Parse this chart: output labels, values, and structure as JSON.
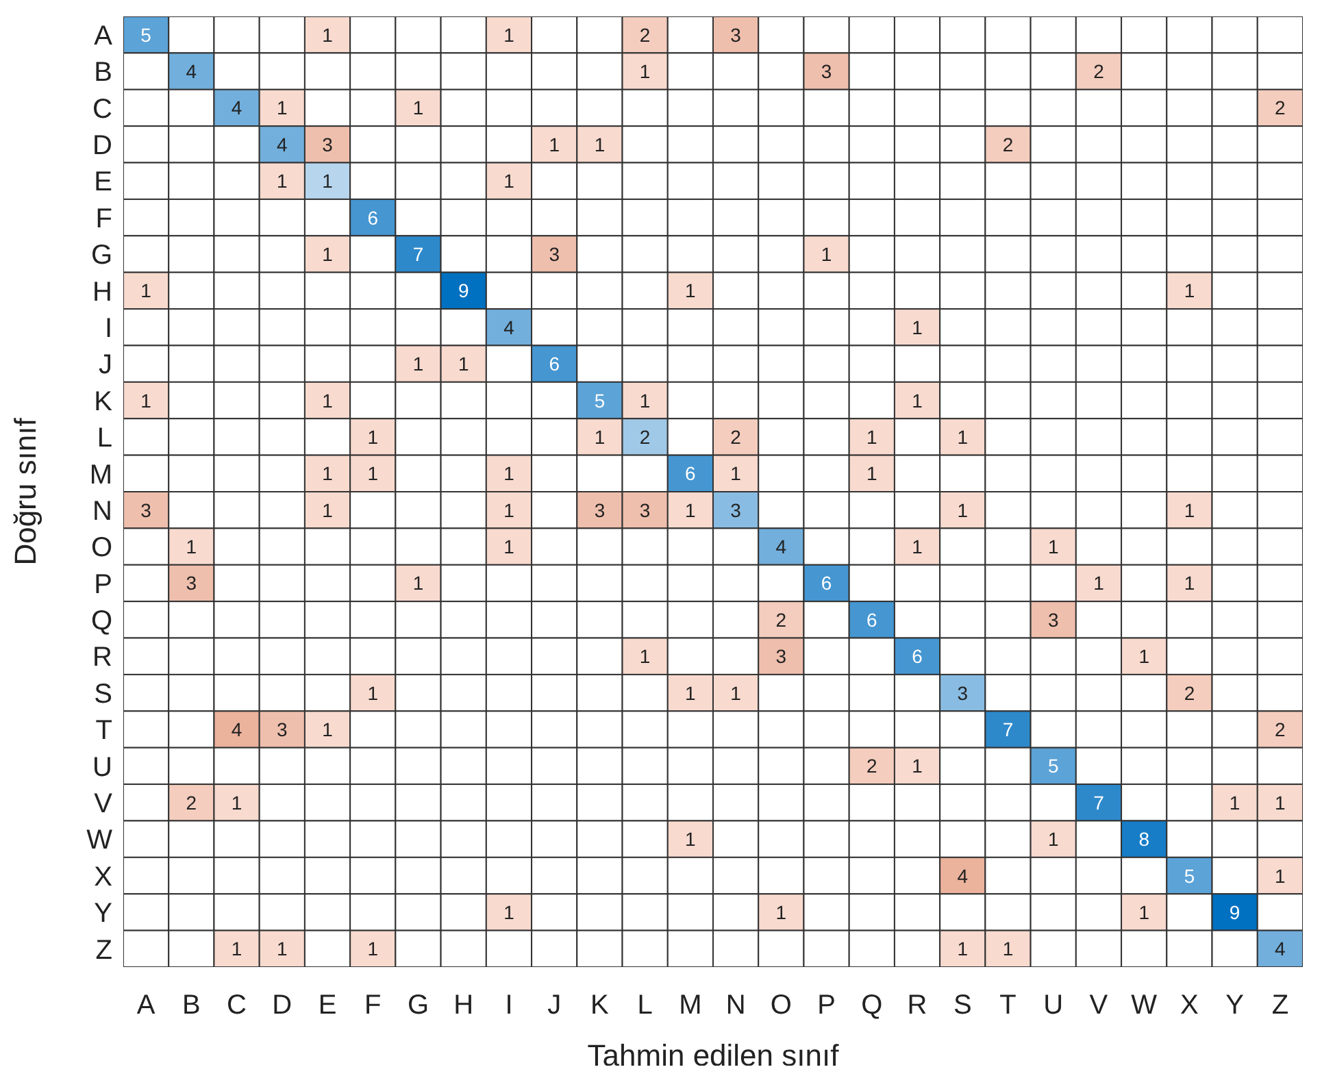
{
  "chart_data": {
    "type": "heatmap",
    "data_labels": true,
    "xlabel": "Tahmin edilen sınıf",
    "ylabel": "Doğru sınıf",
    "categories": [
      "A",
      "B",
      "C",
      "D",
      "E",
      "F",
      "G",
      "H",
      "I",
      "J",
      "K",
      "L",
      "M",
      "N",
      "O",
      "P",
      "Q",
      "R",
      "S",
      "T",
      "U",
      "V",
      "W",
      "X",
      "Y",
      "Z"
    ],
    "y_categories": [
      "A",
      "B",
      "C",
      "D",
      "E",
      "F",
      "G",
      "H",
      "I",
      "J",
      "K",
      "L",
      "M",
      "N",
      "O",
      "P",
      "Q",
      "R",
      "S",
      "T",
      "U",
      "V",
      "W",
      "X",
      "Y",
      "Z"
    ],
    "cells": [
      [
        5,
        null,
        null,
        null,
        1,
        null,
        null,
        null,
        1,
        null,
        null,
        2,
        null,
        3,
        null,
        null,
        null,
        null,
        null,
        null,
        null,
        null,
        null,
        null,
        null,
        null
      ],
      [
        null,
        4,
        null,
        null,
        null,
        null,
        null,
        null,
        null,
        null,
        null,
        1,
        null,
        null,
        null,
        3,
        null,
        null,
        null,
        null,
        null,
        2,
        null,
        null,
        null,
        null
      ],
      [
        null,
        null,
        4,
        1,
        null,
        null,
        1,
        null,
        null,
        null,
        null,
        null,
        null,
        null,
        null,
        null,
        null,
        null,
        null,
        null,
        null,
        null,
        null,
        null,
        null,
        2
      ],
      [
        null,
        null,
        null,
        4,
        3,
        null,
        null,
        null,
        null,
        1,
        1,
        null,
        null,
        null,
        null,
        null,
        null,
        null,
        null,
        2,
        null,
        null,
        null,
        null,
        null,
        null
      ],
      [
        null,
        null,
        null,
        1,
        1,
        null,
        null,
        null,
        1,
        null,
        null,
        null,
        null,
        null,
        null,
        null,
        null,
        null,
        null,
        null,
        null,
        null,
        null,
        null,
        null,
        null
      ],
      [
        null,
        null,
        null,
        null,
        null,
        6,
        null,
        null,
        null,
        null,
        null,
        null,
        null,
        null,
        null,
        null,
        null,
        null,
        null,
        null,
        null,
        null,
        null,
        null,
        null,
        null
      ],
      [
        null,
        null,
        null,
        null,
        1,
        null,
        7,
        null,
        null,
        3,
        null,
        null,
        null,
        null,
        null,
        1,
        null,
        null,
        null,
        null,
        null,
        null,
        null,
        null,
        null,
        null
      ],
      [
        1,
        null,
        null,
        null,
        null,
        null,
        null,
        9,
        null,
        null,
        null,
        null,
        1,
        null,
        null,
        null,
        null,
        null,
        null,
        null,
        null,
        null,
        null,
        1,
        null,
        null
      ],
      [
        null,
        null,
        null,
        null,
        null,
        null,
        null,
        null,
        4,
        null,
        null,
        null,
        null,
        null,
        null,
        null,
        null,
        1,
        null,
        null,
        null,
        null,
        null,
        null,
        null,
        null
      ],
      [
        null,
        null,
        null,
        null,
        null,
        null,
        1,
        1,
        null,
        6,
        null,
        null,
        null,
        null,
        null,
        null,
        null,
        null,
        null,
        null,
        null,
        null,
        null,
        null,
        null,
        null
      ],
      [
        1,
        null,
        null,
        null,
        1,
        null,
        null,
        null,
        null,
        null,
        5,
        1,
        null,
        null,
        null,
        null,
        null,
        1,
        null,
        null,
        null,
        null,
        null,
        null,
        null,
        null
      ],
      [
        null,
        null,
        null,
        null,
        null,
        1,
        null,
        null,
        null,
        null,
        1,
        2,
        null,
        2,
        null,
        null,
        1,
        null,
        1,
        null,
        null,
        null,
        null,
        null,
        null,
        null
      ],
      [
        null,
        null,
        null,
        null,
        1,
        1,
        null,
        null,
        1,
        null,
        null,
        null,
        6,
        1,
        null,
        null,
        1,
        null,
        null,
        null,
        null,
        null,
        null,
        null,
        null,
        null
      ],
      [
        3,
        null,
        null,
        null,
        1,
        null,
        null,
        null,
        1,
        null,
        3,
        3,
        1,
        3,
        null,
        null,
        null,
        null,
        1,
        null,
        null,
        null,
        null,
        1,
        null,
        null
      ],
      [
        null,
        1,
        null,
        null,
        null,
        null,
        null,
        null,
        1,
        null,
        null,
        null,
        null,
        null,
        4,
        null,
        null,
        1,
        null,
        null,
        1,
        null,
        null,
        null,
        null,
        null
      ],
      [
        null,
        3,
        null,
        null,
        null,
        null,
        1,
        null,
        null,
        null,
        null,
        null,
        null,
        null,
        null,
        6,
        null,
        null,
        null,
        null,
        null,
        1,
        null,
        1,
        null,
        null
      ],
      [
        null,
        null,
        null,
        null,
        null,
        null,
        null,
        null,
        null,
        null,
        null,
        null,
        null,
        null,
        2,
        null,
        6,
        null,
        null,
        null,
        3,
        null,
        null,
        null,
        null,
        null
      ],
      [
        null,
        null,
        null,
        null,
        null,
        null,
        null,
        null,
        null,
        null,
        null,
        1,
        null,
        null,
        3,
        null,
        null,
        6,
        null,
        null,
        null,
        null,
        1,
        null,
        null,
        null
      ],
      [
        null,
        null,
        null,
        null,
        null,
        1,
        null,
        null,
        null,
        null,
        null,
        null,
        1,
        1,
        null,
        null,
        null,
        null,
        3,
        null,
        null,
        null,
        null,
        2,
        null,
        null
      ],
      [
        null,
        null,
        4,
        3,
        1,
        null,
        null,
        null,
        null,
        null,
        null,
        null,
        null,
        null,
        null,
        null,
        null,
        null,
        null,
        7,
        null,
        null,
        null,
        null,
        null,
        2
      ],
      [
        null,
        null,
        null,
        null,
        null,
        null,
        null,
        null,
        null,
        null,
        null,
        null,
        null,
        null,
        null,
        null,
        2,
        1,
        null,
        null,
        5,
        null,
        null,
        null,
        null,
        null
      ],
      [
        null,
        2,
        1,
        null,
        null,
        null,
        null,
        null,
        null,
        null,
        null,
        null,
        null,
        null,
        null,
        null,
        null,
        null,
        null,
        null,
        null,
        7,
        null,
        null,
        1,
        1
      ],
      [
        null,
        null,
        null,
        null,
        null,
        null,
        null,
        null,
        null,
        null,
        null,
        null,
        1,
        null,
        null,
        null,
        null,
        null,
        null,
        null,
        1,
        null,
        8,
        null,
        null,
        null
      ],
      [
        null,
        null,
        null,
        null,
        null,
        null,
        null,
        null,
        null,
        null,
        null,
        null,
        null,
        null,
        null,
        null,
        null,
        null,
        4,
        null,
        null,
        null,
        null,
        5,
        null,
        1
      ],
      [
        null,
        null,
        null,
        null,
        null,
        null,
        null,
        null,
        1,
        null,
        null,
        null,
        null,
        null,
        1,
        null,
        null,
        null,
        null,
        null,
        null,
        null,
        1,
        null,
        9,
        null
      ],
      [
        null,
        null,
        1,
        1,
        null,
        1,
        null,
        null,
        null,
        null,
        null,
        null,
        null,
        null,
        null,
        null,
        null,
        null,
        1,
        1,
        null,
        null,
        null,
        null,
        null,
        4
      ]
    ]
  }
}
